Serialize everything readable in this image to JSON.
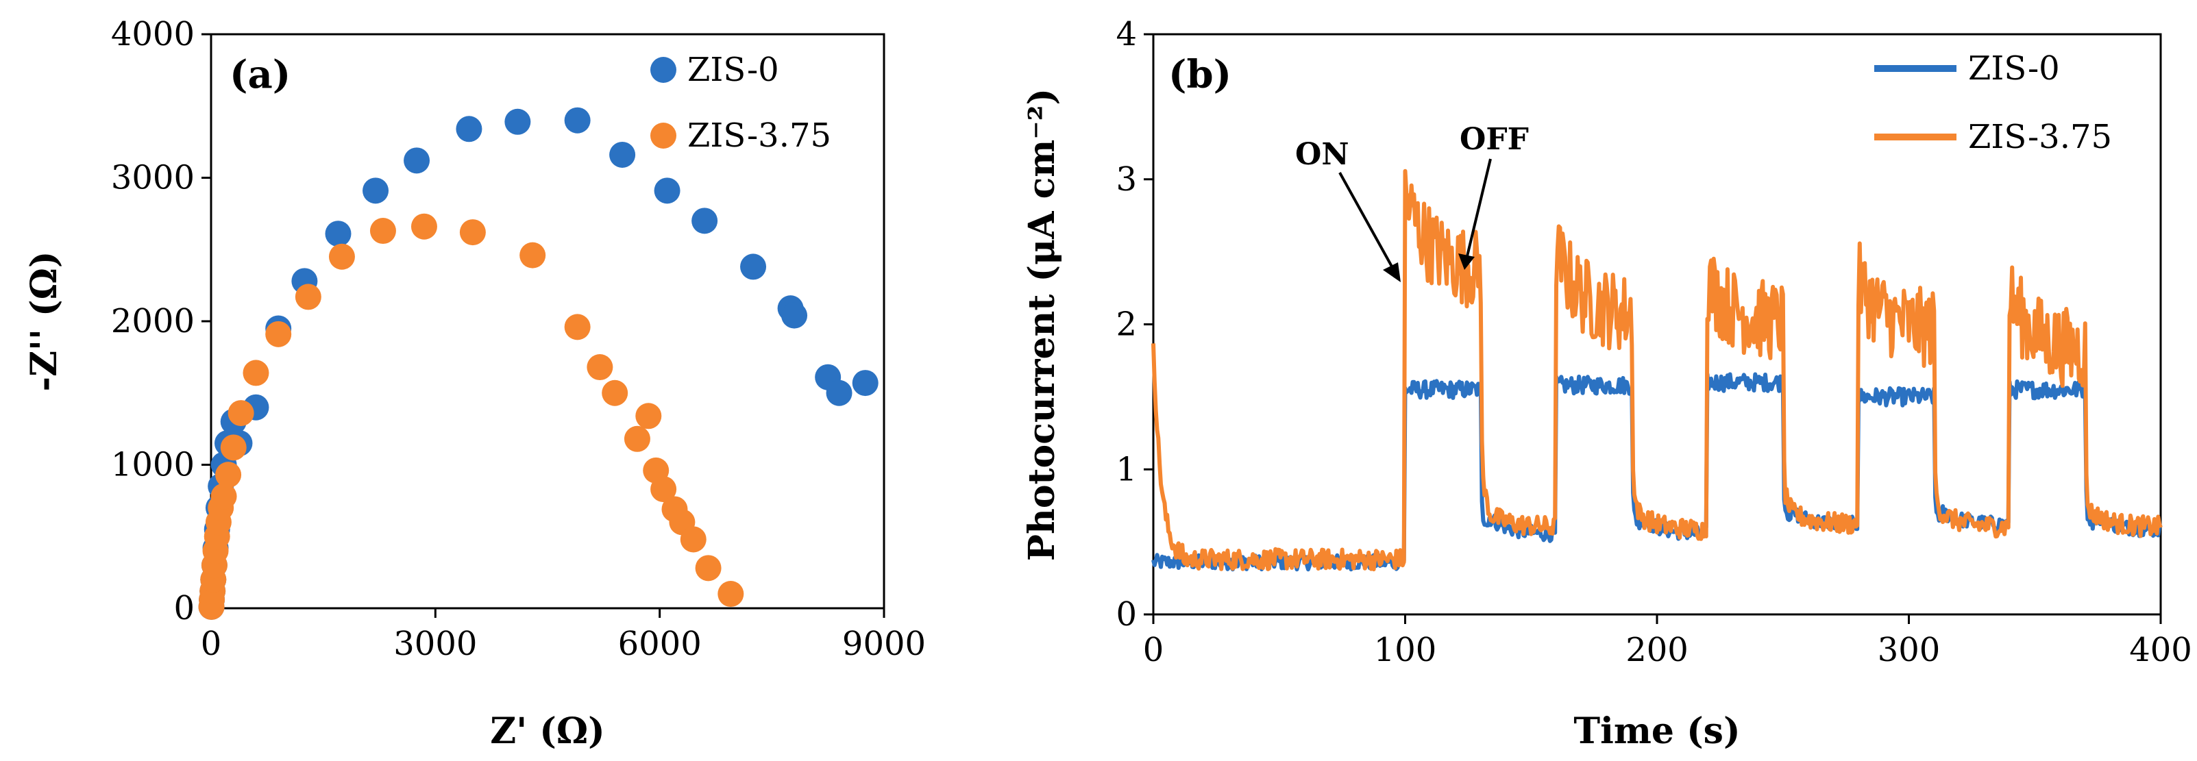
{
  "chart_data": [
    {
      "type": "scatter",
      "panel_label": "(a)",
      "title": "",
      "xlabel": "Z' (Ω)",
      "ylabel": "-Z'' (Ω)",
      "xlim": [
        0,
        9000
      ],
      "ylim": [
        0,
        4000
      ],
      "xticks": [
        "0",
        "3000",
        "6000",
        "9000"
      ],
      "yticks": [
        "0",
        "1000",
        "2000",
        "3000",
        "4000"
      ],
      "grid": false,
      "legend_position": "top-right",
      "series": [
        {
          "name": "ZIS-0",
          "color": "#2b72c2",
          "x": [
            5,
            10,
            20,
            30,
            45,
            60,
            80,
            100,
            130,
            170,
            220,
            300,
            380,
            600,
            900,
            1250,
            1700,
            2200,
            2750,
            3450,
            4100,
            4900,
            5500,
            6100,
            6600,
            7250,
            7750,
            7800,
            8250,
            8400,
            8750
          ],
          "y": [
            10,
            60,
            120,
            200,
            300,
            420,
            550,
            700,
            850,
            1000,
            1150,
            1300,
            1150,
            1400,
            1950,
            2280,
            2610,
            2910,
            3120,
            3340,
            3390,
            3400,
            3160,
            2910,
            2700,
            2380,
            2090,
            2040,
            1610,
            1500,
            1570
          ]
        },
        {
          "name": "ZIS-3.75",
          "color": "#f5862f",
          "x": [
            5,
            10,
            20,
            30,
            45,
            60,
            80,
            100,
            130,
            170,
            230,
            300,
            400,
            600,
            900,
            1300,
            1750,
            2300,
            2850,
            3500,
            4300,
            4900,
            5200,
            5400,
            5700,
            5850,
            5950,
            6050,
            6200,
            6300,
            6450,
            6650,
            6950
          ],
          "y": [
            10,
            60,
            120,
            200,
            300,
            400,
            500,
            600,
            700,
            780,
            930,
            1120,
            1360,
            1640,
            1910,
            2170,
            2450,
            2630,
            2660,
            2620,
            2460,
            1960,
            1680,
            1500,
            1180,
            1340,
            960,
            830,
            690,
            600,
            480,
            280,
            100
          ]
        }
      ]
    },
    {
      "type": "line",
      "panel_label": "(b)",
      "title": "",
      "xlabel": "Time (s)",
      "ylabel": "Photocurrent (μA cm⁻²)",
      "xlim": [
        0,
        400
      ],
      "ylim": [
        0,
        4
      ],
      "xticks": [
        "0",
        "100",
        "200",
        "300",
        "400"
      ],
      "yticks": [
        "0",
        "1",
        "2",
        "3",
        "4"
      ],
      "grid": false,
      "legend_position": "top-right",
      "light_on_intervals": [
        [
          100,
          130
        ],
        [
          160,
          190
        ],
        [
          220,
          250
        ],
        [
          280,
          310
        ],
        [
          340,
          370
        ]
      ],
      "series": [
        {
          "name": "ZIS-0",
          "color": "#2b72c2",
          "dark_level": 0.36,
          "dark_levels_after": [
            0.55,
            0.55,
            0.62,
            0.62,
            0.58
          ],
          "on_levels": [
            1.55,
            1.58,
            1.6,
            1.5,
            1.55
          ]
        },
        {
          "name": "ZIS-3.75",
          "color": "#f5862f",
          "initial_spike": 1.9,
          "dark_level": 0.38,
          "dark_levels_after": [
            0.6,
            0.58,
            0.62,
            0.6,
            0.6
          ],
          "on_peaks": [
            2.9,
            2.5,
            2.3,
            2.3,
            2.2
          ],
          "on_levels": [
            2.35,
            2.05,
            2.0,
            1.95,
            1.8
          ]
        }
      ],
      "annotations": [
        {
          "text": "ON",
          "x": 100,
          "y": 2.25
        },
        {
          "text": "OFF",
          "x": 130,
          "y": 2.2
        }
      ]
    }
  ]
}
